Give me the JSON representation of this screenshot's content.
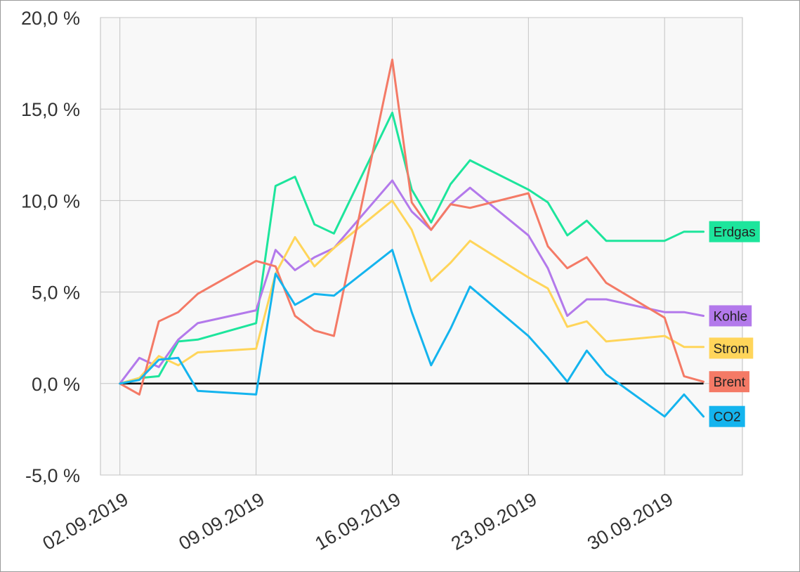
{
  "chart_data": {
    "type": "line",
    "title": "",
    "xlabel": "",
    "ylabel": "",
    "ylim": [
      -5,
      20
    ],
    "xlim": [
      "01.09.2019",
      "04.10.2019"
    ],
    "y_ticks": [
      "-5,0 %",
      "0,0 %",
      "5,0 %",
      "10,0 %",
      "15,0 %",
      "20,0 %"
    ],
    "y_tick_values": [
      -5,
      0,
      5,
      10,
      15,
      20
    ],
    "x_ticks": [
      "02.09.2019",
      "09.09.2019",
      "16.09.2019",
      "23.09.2019",
      "30.09.2019"
    ],
    "grid": true,
    "zero_line": true,
    "legend": "end-of-line labels at right",
    "dates": [
      "02.09.2019",
      "03.09.2019",
      "04.09.2019",
      "05.09.2019",
      "06.09.2019",
      "09.09.2019",
      "10.09.2019",
      "11.09.2019",
      "12.09.2019",
      "13.09.2019",
      "16.09.2019",
      "17.09.2019",
      "18.09.2019",
      "19.09.2019",
      "20.09.2019",
      "23.09.2019",
      "24.09.2019",
      "25.09.2019",
      "26.09.2019",
      "27.09.2019",
      "30.09.2019",
      "01.10.2019",
      "02.10.2019"
    ],
    "series": [
      {
        "name": "Erdgas",
        "color": "#1de59c",
        "values": [
          0.0,
          0.3,
          0.4,
          2.3,
          2.4,
          3.3,
          10.8,
          11.3,
          8.7,
          8.2,
          14.8,
          10.6,
          8.8,
          10.9,
          12.2,
          10.6,
          9.9,
          8.1,
          8.9,
          7.8,
          7.8,
          8.3,
          8.3
        ]
      },
      {
        "name": "Kohle",
        "color": "#b379eb",
        "values": [
          0.0,
          1.4,
          0.9,
          2.4,
          3.3,
          4.0,
          7.3,
          6.2,
          6.9,
          7.4,
          11.1,
          9.4,
          8.4,
          9.8,
          10.7,
          8.1,
          6.3,
          3.7,
          4.6,
          4.6,
          3.9,
          3.9,
          3.7
        ]
      },
      {
        "name": "Strom",
        "color": "#ffd55a",
        "values": [
          0.0,
          0.3,
          1.5,
          1.0,
          1.7,
          1.9,
          6.0,
          8.0,
          6.4,
          7.4,
          10.0,
          8.4,
          5.6,
          6.6,
          7.8,
          5.8,
          5.2,
          3.1,
          3.4,
          2.3,
          2.6,
          2.0,
          2.0
        ]
      },
      {
        "name": "Brent",
        "color": "#f47a66",
        "values": [
          0.0,
          -0.6,
          3.4,
          3.9,
          4.9,
          6.7,
          6.4,
          3.7,
          2.9,
          2.6,
          17.7,
          9.9,
          8.4,
          9.8,
          9.6,
          10.4,
          7.5,
          6.3,
          6.9,
          5.5,
          3.6,
          0.4,
          0.1
        ]
      },
      {
        "name": "CO2",
        "color": "#14b4ee",
        "values": [
          0.0,
          0.2,
          1.3,
          1.4,
          -0.4,
          -0.6,
          6.0,
          4.3,
          4.9,
          4.8,
          7.3,
          3.9,
          1.0,
          3.0,
          5.3,
          2.6,
          1.4,
          0.1,
          1.8,
          0.5,
          -1.8,
          -0.6,
          -1.8
        ]
      }
    ]
  }
}
